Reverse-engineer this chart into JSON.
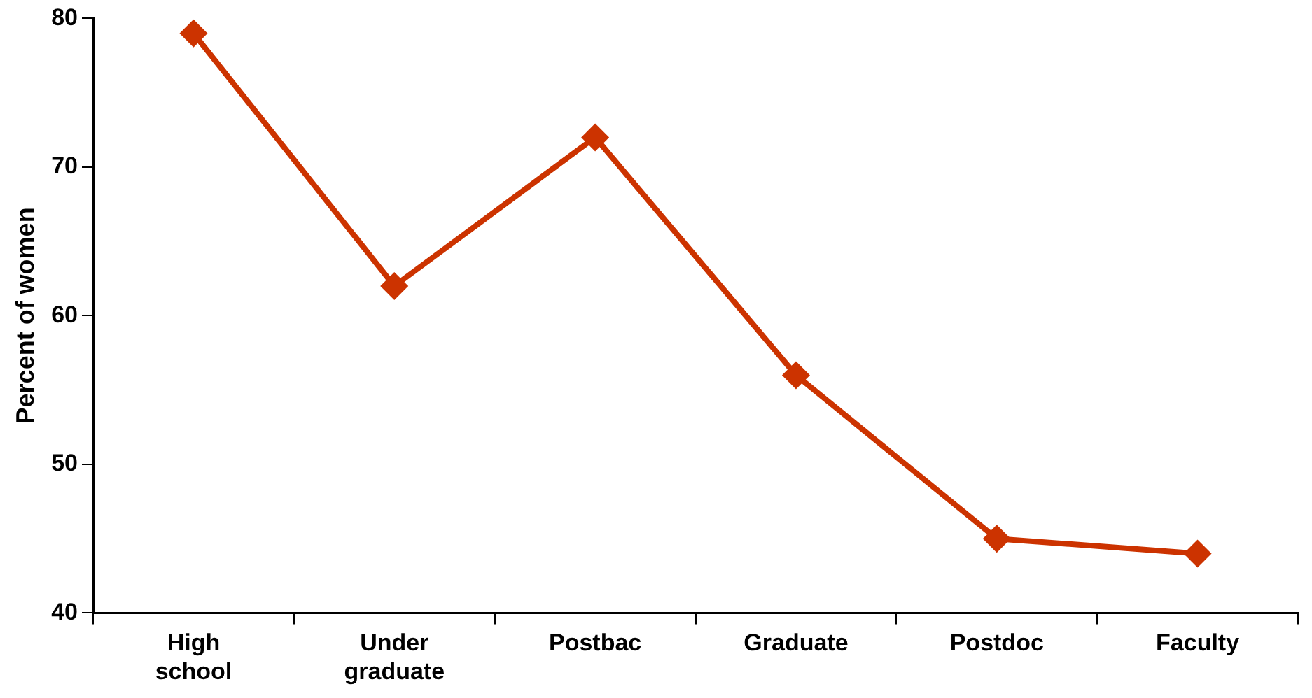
{
  "chart_data": {
    "type": "line",
    "ylabel": "Percent of women",
    "categories": [
      "High school",
      "Under graduate",
      "Postbac",
      "Graduate",
      "Postdoc",
      "Faculty"
    ],
    "series": [
      {
        "color": "#cc3300",
        "values": [
          79,
          62,
          72,
          56,
          45,
          44
        ]
      }
    ],
    "ylim": [
      40,
      80
    ],
    "yticks": [
      40,
      50,
      60,
      70,
      80
    ],
    "grid": false,
    "legend": false,
    "marker": "diamond",
    "line_style": "solid"
  }
}
